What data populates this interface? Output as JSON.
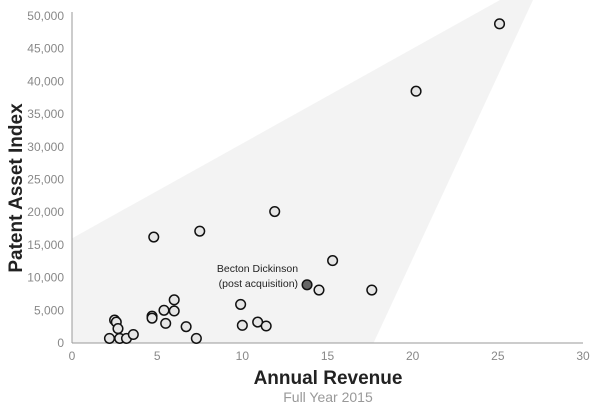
{
  "chart_data": {
    "type": "scatter",
    "title": "",
    "xlabel": "Annual Revenue",
    "xsublabel": "Full Year 2015",
    "ylabel": "Patent Asset Index",
    "xlim": [
      0,
      30
    ],
    "ylim": [
      0,
      50000
    ],
    "x_ticks": [
      0,
      5,
      10,
      15,
      20,
      25,
      30
    ],
    "x_tick_labels": [
      "0",
      "5",
      "10",
      "15",
      "20",
      "25",
      "30"
    ],
    "y_ticks": [
      0,
      5000,
      10000,
      15000,
      20000,
      25000,
      30000,
      35000,
      40000,
      45000,
      50000
    ],
    "y_tick_labels": [
      "0",
      "5,000",
      "10,000",
      "15,000",
      "20,000",
      "25,000",
      "30,000",
      "35,000",
      "40,000",
      "45,000",
      "50,000"
    ],
    "grid": false,
    "colors": {
      "point_fill": "#e6e6e6",
      "point_stroke": "#111111",
      "highlight_fill": "#666666",
      "axis": "#999999",
      "cone_fill": "#efefef"
    },
    "points": [
      {
        "x": 2.2,
        "y": 700
      },
      {
        "x": 2.5,
        "y": 3500
      },
      {
        "x": 2.6,
        "y": 3200
      },
      {
        "x": 2.7,
        "y": 2200
      },
      {
        "x": 2.8,
        "y": 700
      },
      {
        "x": 3.2,
        "y": 700
      },
      {
        "x": 3.6,
        "y": 1300
      },
      {
        "x": 4.7,
        "y": 4100
      },
      {
        "x": 4.7,
        "y": 3800
      },
      {
        "x": 4.8,
        "y": 16200
      },
      {
        "x": 5.4,
        "y": 5000
      },
      {
        "x": 5.5,
        "y": 3000
      },
      {
        "x": 6.0,
        "y": 6600
      },
      {
        "x": 6.0,
        "y": 4900
      },
      {
        "x": 6.7,
        "y": 2500
      },
      {
        "x": 7.3,
        "y": 700
      },
      {
        "x": 7.5,
        "y": 17100
      },
      {
        "x": 9.9,
        "y": 5900
      },
      {
        "x": 10.0,
        "y": 2700
      },
      {
        "x": 10.9,
        "y": 3200
      },
      {
        "x": 11.4,
        "y": 2600
      },
      {
        "x": 11.9,
        "y": 20100
      },
      {
        "x": 14.5,
        "y": 8100
      },
      {
        "x": 15.3,
        "y": 12600
      },
      {
        "x": 17.6,
        "y": 8100
      },
      {
        "x": 20.2,
        "y": 38500
      },
      {
        "x": 25.1,
        "y": 48800
      },
      {
        "x": 13.8,
        "y": 8900,
        "highlight": true,
        "label": [
          "Becton Dickinson",
          "(post acquisition)"
        ]
      }
    ]
  }
}
